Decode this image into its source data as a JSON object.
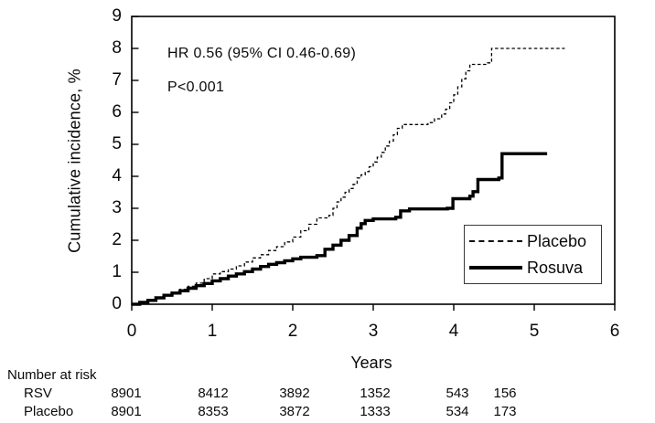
{
  "chart_data": {
    "type": "line",
    "subtype": "kaplan-meier-cumulative-incidence",
    "title": "",
    "ylabel": "Cumulative incidence, %",
    "xlabel": "Years",
    "xlim": [
      0,
      6
    ],
    "ylim": [
      0,
      9
    ],
    "xticks": [
      0,
      1,
      2,
      3,
      4,
      5,
      6
    ],
    "yticks": [
      0,
      1,
      2,
      3,
      4,
      5,
      6,
      7,
      8,
      9
    ],
    "grid": "off",
    "legend_position": "lower right",
    "line_color": "#000000",
    "background_color": "#ffffff",
    "annotations": [
      "HR 0.56 (95% CI 0.46-0.69)",
      "P<0.001"
    ],
    "series": [
      {
        "name": "Placebo",
        "style": "dashed",
        "points": [
          [
            0,
            0
          ],
          [
            0.1,
            0.08
          ],
          [
            0.2,
            0.15
          ],
          [
            0.3,
            0.22
          ],
          [
            0.4,
            0.3
          ],
          [
            0.5,
            0.38
          ],
          [
            0.6,
            0.47
          ],
          [
            0.7,
            0.56
          ],
          [
            0.8,
            0.66
          ],
          [
            0.9,
            0.8
          ],
          [
            1.0,
            0.95
          ],
          [
            1.1,
            1.02
          ],
          [
            1.2,
            1.1
          ],
          [
            1.3,
            1.2
          ],
          [
            1.4,
            1.32
          ],
          [
            1.5,
            1.45
          ],
          [
            1.6,
            1.55
          ],
          [
            1.7,
            1.68
          ],
          [
            1.8,
            1.8
          ],
          [
            1.9,
            1.95
          ],
          [
            2.0,
            2.1
          ],
          [
            2.1,
            2.3
          ],
          [
            2.2,
            2.5
          ],
          [
            2.3,
            2.7
          ],
          [
            2.45,
            2.78
          ],
          [
            2.5,
            3.0
          ],
          [
            2.55,
            3.2
          ],
          [
            2.6,
            3.35
          ],
          [
            2.65,
            3.5
          ],
          [
            2.7,
            3.62
          ],
          [
            2.75,
            3.75
          ],
          [
            2.8,
            3.95
          ],
          [
            2.85,
            4.05
          ],
          [
            2.9,
            4.15
          ],
          [
            2.95,
            4.3
          ],
          [
            3.0,
            4.45
          ],
          [
            3.05,
            4.6
          ],
          [
            3.1,
            4.75
          ],
          [
            3.15,
            4.95
          ],
          [
            3.2,
            5.1
          ],
          [
            3.25,
            5.3
          ],
          [
            3.3,
            5.5
          ],
          [
            3.36,
            5.62
          ],
          [
            3.68,
            5.68
          ],
          [
            3.76,
            5.8
          ],
          [
            3.85,
            5.95
          ],
          [
            3.9,
            6.1
          ],
          [
            3.95,
            6.3
          ],
          [
            4.0,
            6.55
          ],
          [
            4.05,
            6.8
          ],
          [
            4.1,
            7.05
          ],
          [
            4.15,
            7.3
          ],
          [
            4.2,
            7.5
          ],
          [
            4.42,
            7.55
          ],
          [
            4.47,
            8.0
          ],
          [
            5.38,
            8.0
          ]
        ]
      },
      {
        "name": "Rosuva",
        "style": "solid",
        "points": [
          [
            0,
            0
          ],
          [
            0.1,
            0.06
          ],
          [
            0.2,
            0.12
          ],
          [
            0.3,
            0.2
          ],
          [
            0.4,
            0.28
          ],
          [
            0.5,
            0.35
          ],
          [
            0.6,
            0.42
          ],
          [
            0.7,
            0.5
          ],
          [
            0.8,
            0.58
          ],
          [
            0.9,
            0.65
          ],
          [
            1.0,
            0.73
          ],
          [
            1.1,
            0.8
          ],
          [
            1.2,
            0.88
          ],
          [
            1.3,
            0.95
          ],
          [
            1.4,
            1.02
          ],
          [
            1.5,
            1.1
          ],
          [
            1.6,
            1.18
          ],
          [
            1.7,
            1.25
          ],
          [
            1.8,
            1.3
          ],
          [
            1.9,
            1.36
          ],
          [
            2.0,
            1.42
          ],
          [
            2.1,
            1.47
          ],
          [
            2.3,
            1.52
          ],
          [
            2.4,
            1.72
          ],
          [
            2.5,
            1.85
          ],
          [
            2.6,
            2.0
          ],
          [
            2.7,
            2.15
          ],
          [
            2.8,
            2.38
          ],
          [
            2.85,
            2.52
          ],
          [
            2.9,
            2.62
          ],
          [
            3.0,
            2.67
          ],
          [
            3.28,
            2.72
          ],
          [
            3.34,
            2.92
          ],
          [
            3.45,
            2.98
          ],
          [
            3.92,
            3.0
          ],
          [
            3.99,
            3.3
          ],
          [
            4.2,
            3.38
          ],
          [
            4.24,
            3.52
          ],
          [
            4.3,
            3.9
          ],
          [
            4.56,
            3.95
          ],
          [
            4.6,
            4.71
          ],
          [
            5.16,
            4.71
          ]
        ]
      }
    ],
    "number_at_risk": {
      "title": "Number at risk",
      "rows": [
        {
          "label": "RSV",
          "values": [
            "8901",
            "8412",
            "3892",
            "1352",
            "543",
            "156"
          ]
        },
        {
          "label": "Placebo",
          "values": [
            "8901",
            "8353",
            "3872",
            "1333",
            "534",
            "173"
          ]
        }
      ]
    }
  }
}
